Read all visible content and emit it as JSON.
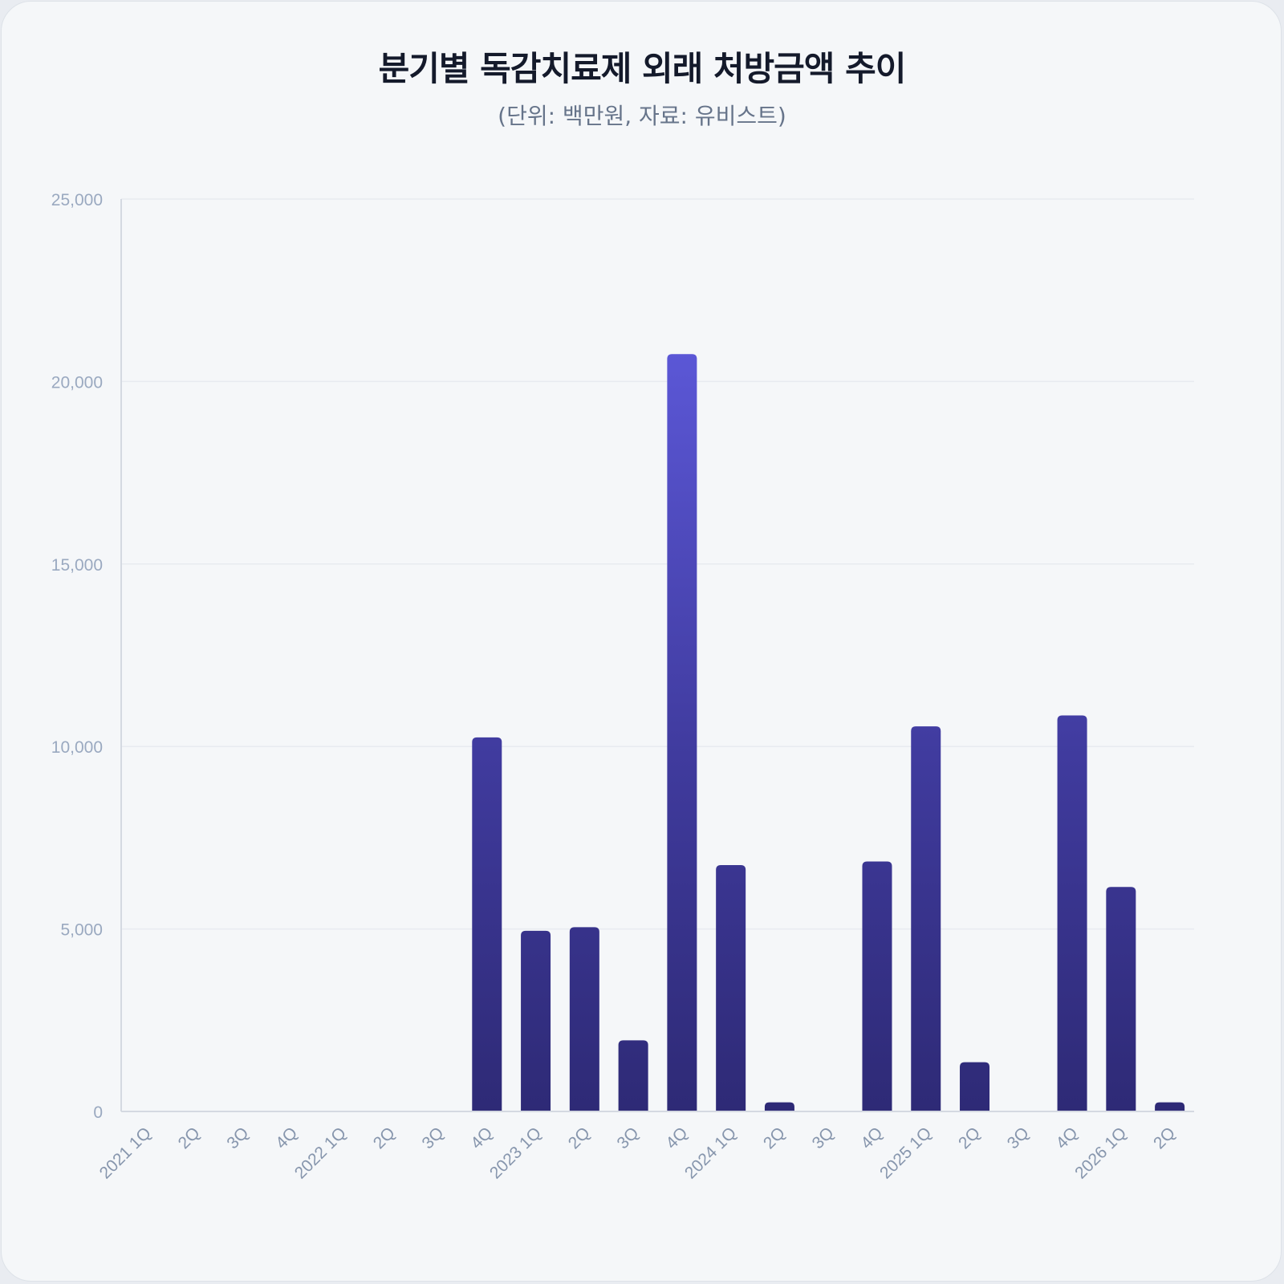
{
  "chart_data": {
    "type": "bar",
    "title": "분기별 독감치료제 외래 처방금액 추이",
    "subtitle": "(단위: 백만원, 자료: 유비스트)",
    "xlabel": "",
    "ylabel": "",
    "ylim": [
      0,
      25000
    ],
    "yticks": [
      0,
      5000,
      10000,
      15000,
      20000,
      25000
    ],
    "ytick_labels": [
      "0",
      "5,000",
      "10,000",
      "15,000",
      "20,000",
      "25,000"
    ],
    "grid": true,
    "legend": "none",
    "categories": [
      "2021 1Q",
      "2Q",
      "3Q",
      "4Q",
      "2022 1Q",
      "2Q",
      "3Q",
      "4Q",
      "2023 1Q",
      "2Q",
      "3Q",
      "4Q",
      "2024 1Q",
      "2Q",
      "3Q",
      "4Q",
      "2025 1Q",
      "2Q",
      "3Q",
      "4Q",
      "2026 1Q",
      "2Q"
    ],
    "values": [
      0,
      0,
      0,
      0,
      0,
      0,
      0,
      10250,
      4950,
      5050,
      1950,
      20750,
      6750,
      250,
      0,
      6850,
      10550,
      1350,
      0,
      10850,
      6150,
      250
    ],
    "colors": {
      "bar_top": "#5b57d6",
      "bar_mid": "#3f3a9c",
      "bar_bottom": "#2e2a76",
      "grid": "#e8ebf0",
      "axis": "#d4d9e1"
    }
  }
}
